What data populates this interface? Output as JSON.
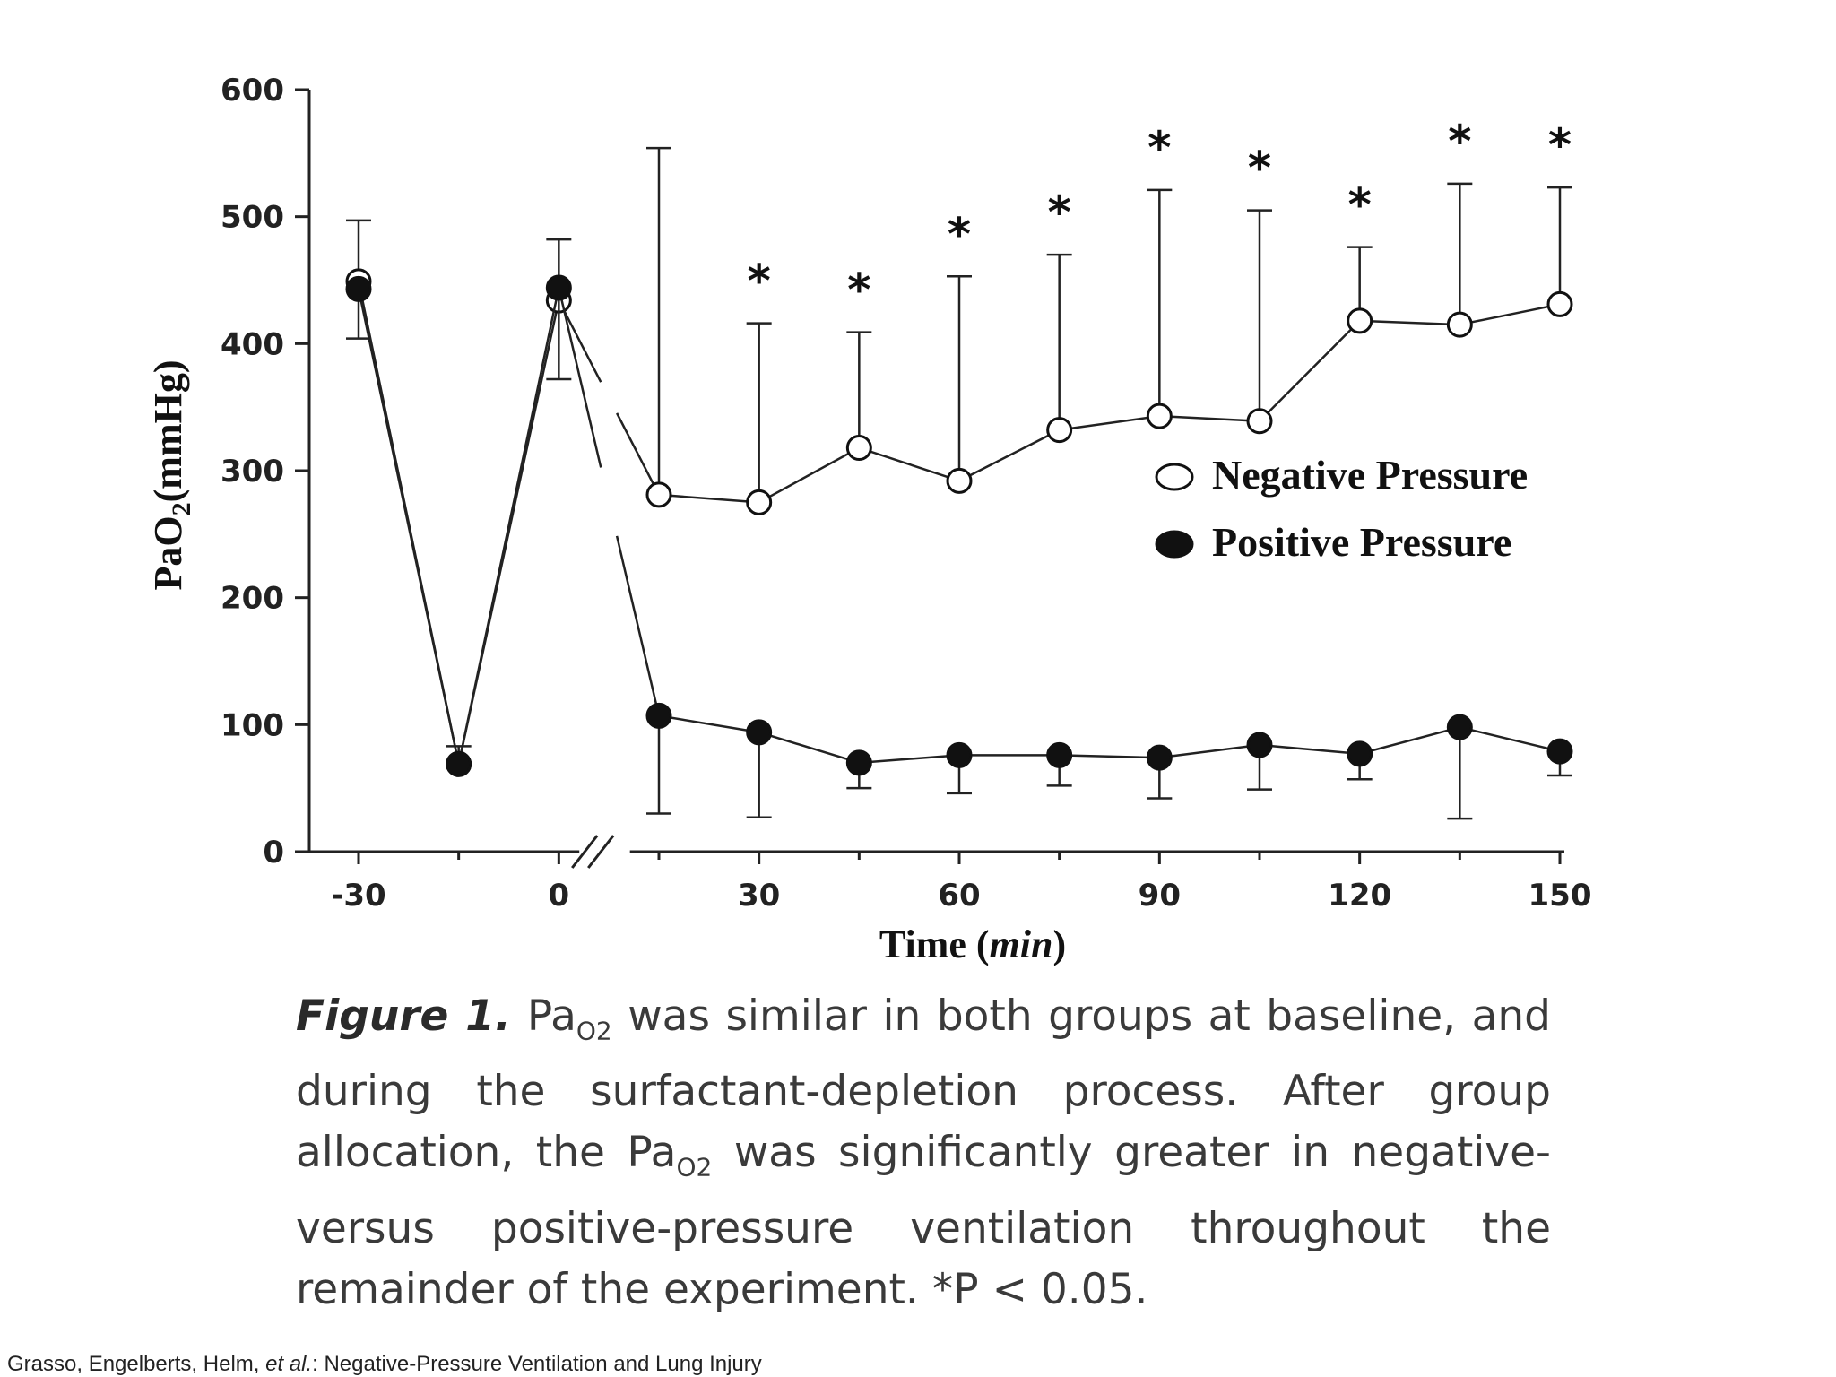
{
  "chart_data": {
    "type": "line",
    "xlabel": "Time (min)",
    "ylabel": "PaO2(mmHg)",
    "ylim": [
      0,
      600
    ],
    "yticks": [
      0,
      100,
      200,
      300,
      400,
      500,
      600
    ],
    "xtick_labels": [
      "-30",
      "0",
      "30",
      "60",
      "90",
      "120",
      "150"
    ],
    "xlim": [
      -30,
      150
    ],
    "x_axis_break": "between 0 and 15",
    "legend": {
      "placement": "right",
      "entries": [
        {
          "label": "Negative Pressure",
          "marker": "open circle"
        },
        {
          "label": "Positive Pressure",
          "marker": "filled circle"
        }
      ]
    },
    "significance_marker": "*",
    "significant_x": [
      30,
      45,
      60,
      75,
      90,
      105,
      120,
      135,
      150
    ],
    "series": [
      {
        "name": "Negative Pressure",
        "marker": "open",
        "x": [
          -30,
          -15,
          0,
          15,
          30,
          45,
          60,
          75,
          90,
          105,
          120,
          135,
          150
        ],
        "y": [
          449,
          69,
          434,
          281,
          275,
          318,
          292,
          332,
          343,
          339,
          418,
          415,
          431
        ],
        "error_upper": [
          497,
          83,
          482,
          554,
          416,
          409,
          453,
          470,
          521,
          505,
          476,
          526,
          523
        ],
        "error_lower": [
          null,
          null,
          null,
          null,
          null,
          null,
          null,
          null,
          null,
          null,
          null,
          null,
          null
        ]
      },
      {
        "name": "Positive Pressure",
        "marker": "filled",
        "x": [
          -30,
          -15,
          0,
          15,
          30,
          45,
          60,
          75,
          90,
          105,
          120,
          135,
          150
        ],
        "y": [
          443,
          69,
          444,
          107,
          94,
          70,
          76,
          76,
          74,
          84,
          77,
          98,
          79
        ],
        "error_upper": [
          null,
          null,
          null,
          null,
          null,
          null,
          null,
          null,
          null,
          null,
          null,
          null,
          null
        ],
        "error_lower": [
          404,
          null,
          372,
          30,
          27,
          50,
          46,
          52,
          42,
          49,
          57,
          26,
          60
        ]
      }
    ]
  },
  "caption": {
    "lead": "Figure 1.",
    "parts": [
      "Pa",
      "O2",
      " was similar in both groups at baseline, and during the surfactant-depletion process. After group allocation, the Pa",
      "O2",
      " was significantly greater in negative-versus positive-pressure ventilation throughout the remainder of the experiment. *P < 0.05."
    ]
  },
  "citation": {
    "authors": "Grasso, Engelberts, Helm, ",
    "etal": "et al.",
    "title": ": Negative-Pressure Ventilation and Lung Injury"
  }
}
